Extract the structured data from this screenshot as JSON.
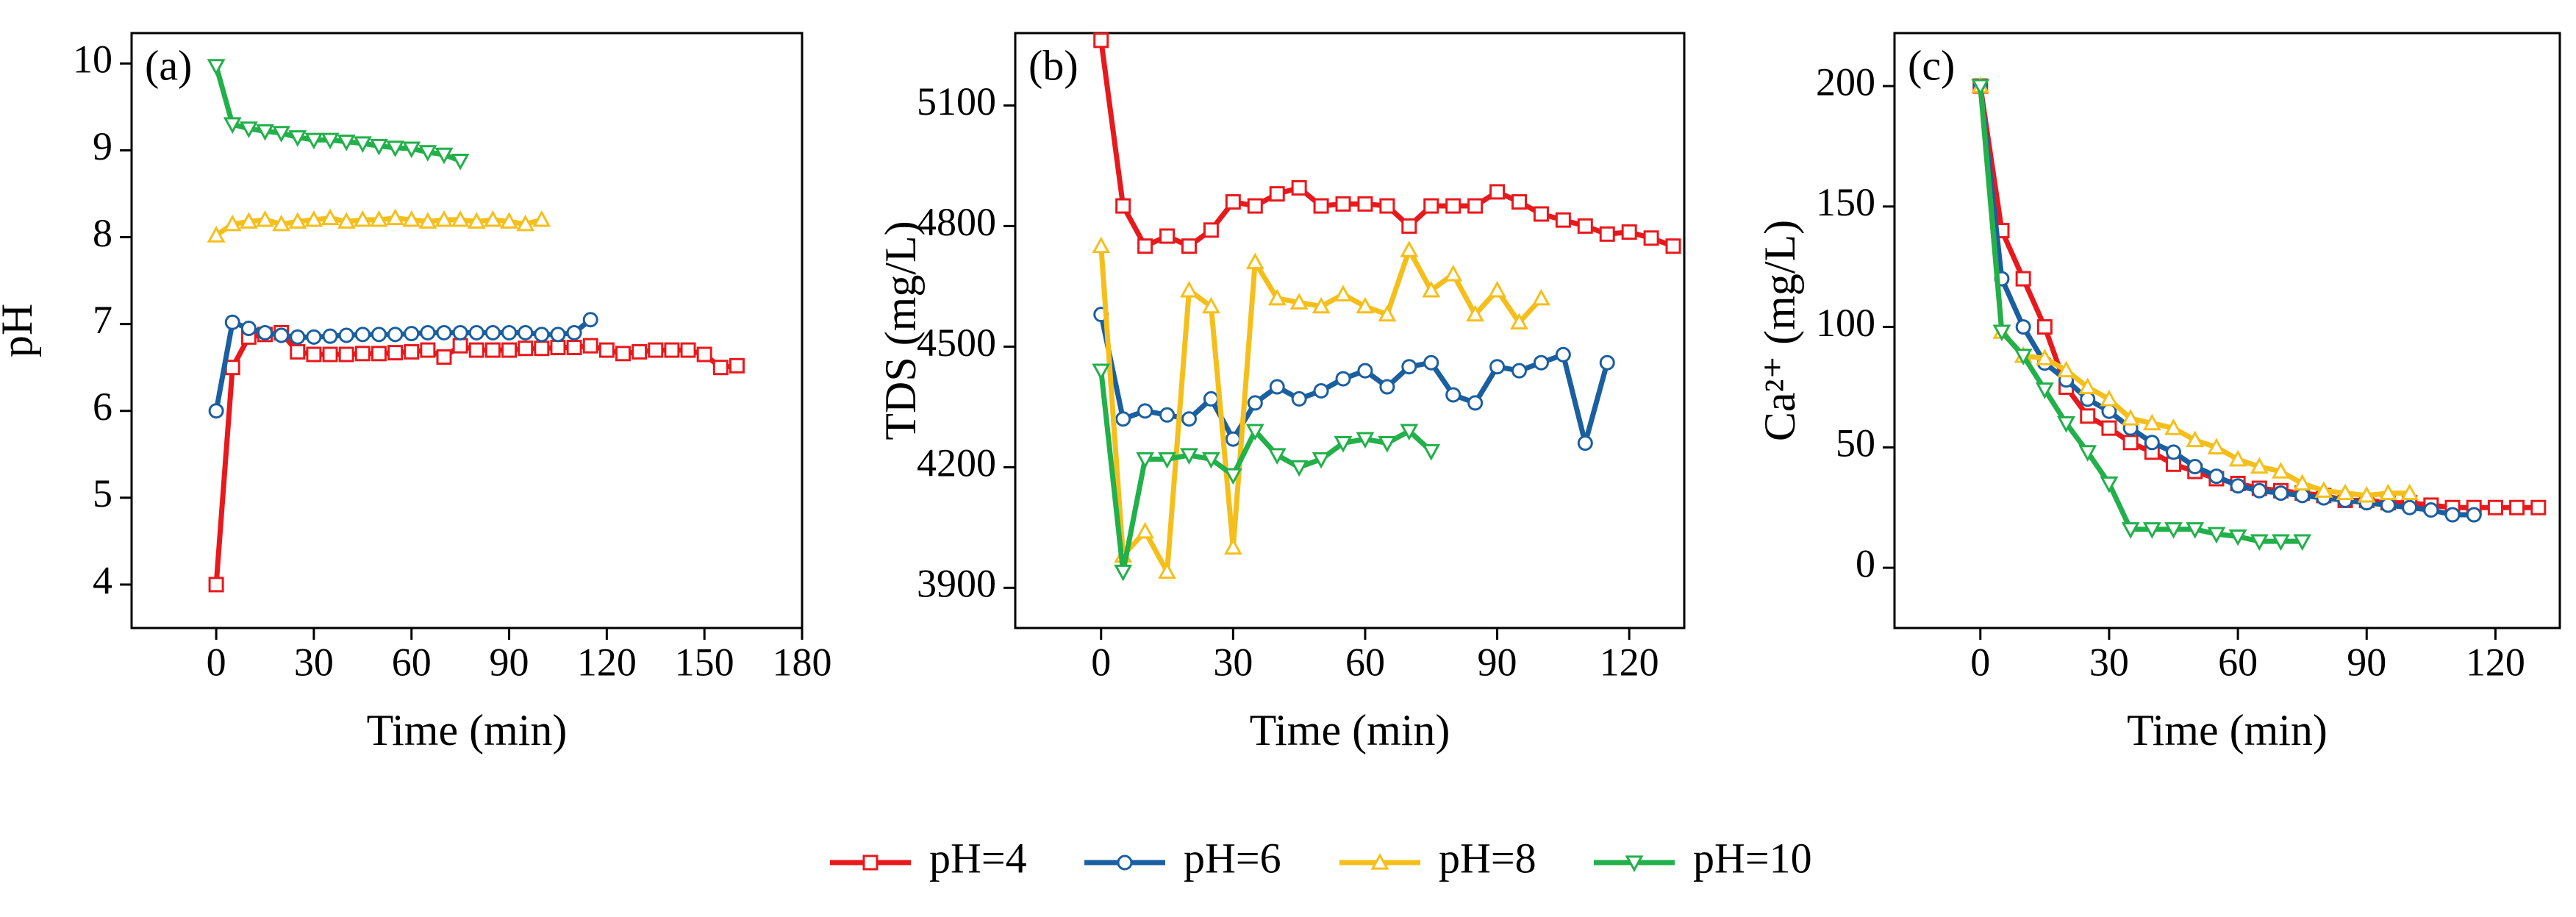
{
  "chart_data": [
    {
      "type": "line",
      "label": "(a)",
      "xlabel": "Time (min)",
      "ylabel": "pH",
      "xlim": [
        -26,
        180
      ],
      "xticks": [
        0,
        30,
        60,
        90,
        120,
        150,
        180
      ],
      "ylim": [
        3.5,
        10.35
      ],
      "yticks": [
        4,
        5,
        6,
        7,
        8,
        9,
        10
      ],
      "series": [
        {
          "name": "pH=4",
          "color": "#e8191c",
          "marker": "square",
          "x": [
            0,
            5,
            10,
            15,
            20,
            25,
            30,
            35,
            40,
            45,
            50,
            55,
            60,
            65,
            70,
            75,
            80,
            85,
            90,
            95,
            100,
            105,
            110,
            115,
            120,
            125,
            130,
            135,
            140,
            145,
            150,
            155,
            160
          ],
          "values": [
            4.0,
            6.5,
            6.85,
            6.88,
            6.9,
            6.68,
            6.65,
            6.65,
            6.65,
            6.66,
            6.66,
            6.67,
            6.68,
            6.7,
            6.62,
            6.75,
            6.7,
            6.7,
            6.7,
            6.72,
            6.72,
            6.73,
            6.73,
            6.75,
            6.7,
            6.66,
            6.68,
            6.7,
            6.7,
            6.7,
            6.65,
            6.5,
            6.52
          ]
        },
        {
          "name": "pH=6",
          "color": "#1a5fa0",
          "marker": "circle",
          "x": [
            0,
            5,
            10,
            15,
            20,
            25,
            30,
            35,
            40,
            45,
            50,
            55,
            60,
            65,
            70,
            75,
            80,
            85,
            90,
            95,
            100,
            105,
            110,
            115
          ],
          "values": [
            6.0,
            7.02,
            6.95,
            6.9,
            6.87,
            6.85,
            6.85,
            6.86,
            6.87,
            6.88,
            6.88,
            6.88,
            6.89,
            6.9,
            6.9,
            6.9,
            6.9,
            6.9,
            6.9,
            6.9,
            6.88,
            6.88,
            6.9,
            7.05
          ]
        },
        {
          "name": "pH=8",
          "color": "#f5bf1b",
          "marker": "triangle-up",
          "x": [
            0,
            5,
            10,
            15,
            20,
            25,
            30,
            35,
            40,
            45,
            50,
            55,
            60,
            65,
            70,
            75,
            80,
            85,
            90,
            95,
            100
          ],
          "values": [
            8.02,
            8.15,
            8.18,
            8.2,
            8.15,
            8.18,
            8.2,
            8.22,
            8.18,
            8.2,
            8.2,
            8.22,
            8.2,
            8.18,
            8.2,
            8.2,
            8.18,
            8.2,
            8.18,
            8.15,
            8.2
          ]
        },
        {
          "name": "pH=10",
          "color": "#22b04b",
          "marker": "triangle-down",
          "x": [
            0,
            5,
            10,
            15,
            20,
            25,
            30,
            35,
            40,
            45,
            50,
            55,
            60,
            65,
            70,
            75
          ],
          "values": [
            9.97,
            9.3,
            9.25,
            9.22,
            9.2,
            9.15,
            9.12,
            9.12,
            9.1,
            9.08,
            9.05,
            9.03,
            9.02,
            8.98,
            8.95,
            8.88
          ]
        }
      ]
    },
    {
      "type": "line",
      "label": "(b)",
      "xlabel": "Time (min)",
      "ylabel": "TDS (mg/L)",
      "xlim": [
        -19.5,
        132.5
      ],
      "xticks": [
        0,
        30,
        60,
        90,
        120
      ],
      "ylim": [
        3800,
        5280
      ],
      "yticks": [
        3900,
        4200,
        4500,
        4800,
        5100
      ],
      "series": [
        {
          "name": "pH=4",
          "color": "#e8191c",
          "marker": "square",
          "x": [
            0,
            5,
            10,
            15,
            20,
            25,
            30,
            35,
            40,
            45,
            50,
            55,
            60,
            65,
            70,
            75,
            80,
            85,
            90,
            95,
            100,
            105,
            110,
            115,
            120,
            125,
            130
          ],
          "values": [
            5262,
            4850,
            4750,
            4775,
            4750,
            4790,
            4860,
            4850,
            4880,
            4895,
            4850,
            4855,
            4855,
            4850,
            4800,
            4850,
            4850,
            4850,
            4885,
            4860,
            4830,
            4815,
            4800,
            4780,
            4785,
            4770,
            4750
          ]
        },
        {
          "name": "pH=6",
          "color": "#1a5fa0",
          "marker": "circle",
          "x": [
            0,
            5,
            10,
            15,
            20,
            25,
            30,
            35,
            40,
            45,
            50,
            55,
            60,
            65,
            70,
            75,
            80,
            85,
            90,
            95,
            100,
            105,
            110,
            115
          ],
          "values": [
            4580,
            4320,
            4340,
            4330,
            4320,
            4370,
            4270,
            4360,
            4400,
            4370,
            4390,
            4420,
            4440,
            4400,
            4450,
            4460,
            4380,
            4360,
            4450,
            4440,
            4460,
            4480,
            4260,
            4460
          ]
        },
        {
          "name": "pH=8",
          "color": "#f5bf1b",
          "marker": "triangle-up",
          "x": [
            0,
            5,
            10,
            15,
            20,
            25,
            30,
            35,
            40,
            45,
            50,
            55,
            60,
            65,
            70,
            75,
            80,
            85,
            90,
            95,
            100
          ],
          "values": [
            4750,
            3980,
            4040,
            3940,
            4640,
            4600,
            4000,
            4710,
            4620,
            4610,
            4600,
            4630,
            4600,
            4580,
            4740,
            4640,
            4680,
            4580,
            4640,
            4560,
            4620
          ]
        },
        {
          "name": "pH=10",
          "color": "#22b04b",
          "marker": "triangle-down",
          "x": [
            0,
            5,
            10,
            15,
            20,
            25,
            30,
            35,
            40,
            45,
            50,
            55,
            60,
            65,
            70,
            75
          ],
          "values": [
            4440,
            3940,
            4220,
            4220,
            4230,
            4220,
            4180,
            4290,
            4230,
            4200,
            4220,
            4260,
            4270,
            4260,
            4290,
            4240
          ]
        }
      ]
    },
    {
      "type": "line",
      "label": "(c)",
      "xlabel": "Time (min)",
      "ylabel": "Ca²⁺ (mg/L)",
      "xlim": [
        -20,
        135
      ],
      "xticks": [
        0,
        30,
        60,
        90,
        120
      ],
      "ylim": [
        -25,
        222
      ],
      "yticks": [
        0,
        50,
        100,
        150,
        200
      ],
      "series": [
        {
          "name": "pH=4",
          "color": "#e8191c",
          "marker": "square",
          "x": [
            0,
            5,
            10,
            15,
            20,
            25,
            30,
            35,
            40,
            45,
            50,
            55,
            60,
            65,
            70,
            75,
            80,
            85,
            90,
            95,
            100,
            105,
            110,
            115,
            120,
            125,
            130
          ],
          "values": [
            200,
            140,
            120,
            100,
            75,
            63,
            58,
            52,
            48,
            43,
            40,
            37,
            35,
            33,
            32,
            31,
            30,
            28,
            28,
            27,
            27,
            26,
            25,
            25,
            25,
            25,
            25
          ]
        },
        {
          "name": "pH=6",
          "color": "#1a5fa0",
          "marker": "circle",
          "x": [
            0,
            5,
            10,
            15,
            20,
            25,
            30,
            35,
            40,
            45,
            50,
            55,
            60,
            65,
            70,
            75,
            80,
            85,
            90,
            95,
            100,
            105,
            110,
            115
          ],
          "values": [
            200,
            120,
            100,
            85,
            78,
            70,
            65,
            58,
            52,
            48,
            42,
            38,
            34,
            32,
            31,
            30,
            29,
            28,
            27,
            26,
            25,
            24,
            22,
            22
          ]
        },
        {
          "name": "pH=8",
          "color": "#f5bf1b",
          "marker": "triangle-up",
          "x": [
            0,
            5,
            10,
            15,
            20,
            25,
            30,
            35,
            40,
            45,
            50,
            55,
            60,
            65,
            70,
            75,
            80,
            85,
            90,
            95,
            100
          ],
          "values": [
            200,
            98,
            88,
            87,
            82,
            75,
            70,
            62,
            60,
            58,
            53,
            50,
            45,
            42,
            40,
            35,
            32,
            31,
            30,
            31,
            31
          ]
        },
        {
          "name": "pH=10",
          "color": "#22b04b",
          "marker": "triangle-down",
          "x": [
            0,
            5,
            10,
            15,
            20,
            25,
            30,
            35,
            40,
            45,
            50,
            55,
            60,
            65,
            70,
            75
          ],
          "values": [
            200,
            98,
            88,
            74,
            60,
            48,
            35,
            16,
            16,
            16,
            16,
            14,
            13,
            11,
            11,
            11
          ]
        }
      ]
    }
  ]
}
